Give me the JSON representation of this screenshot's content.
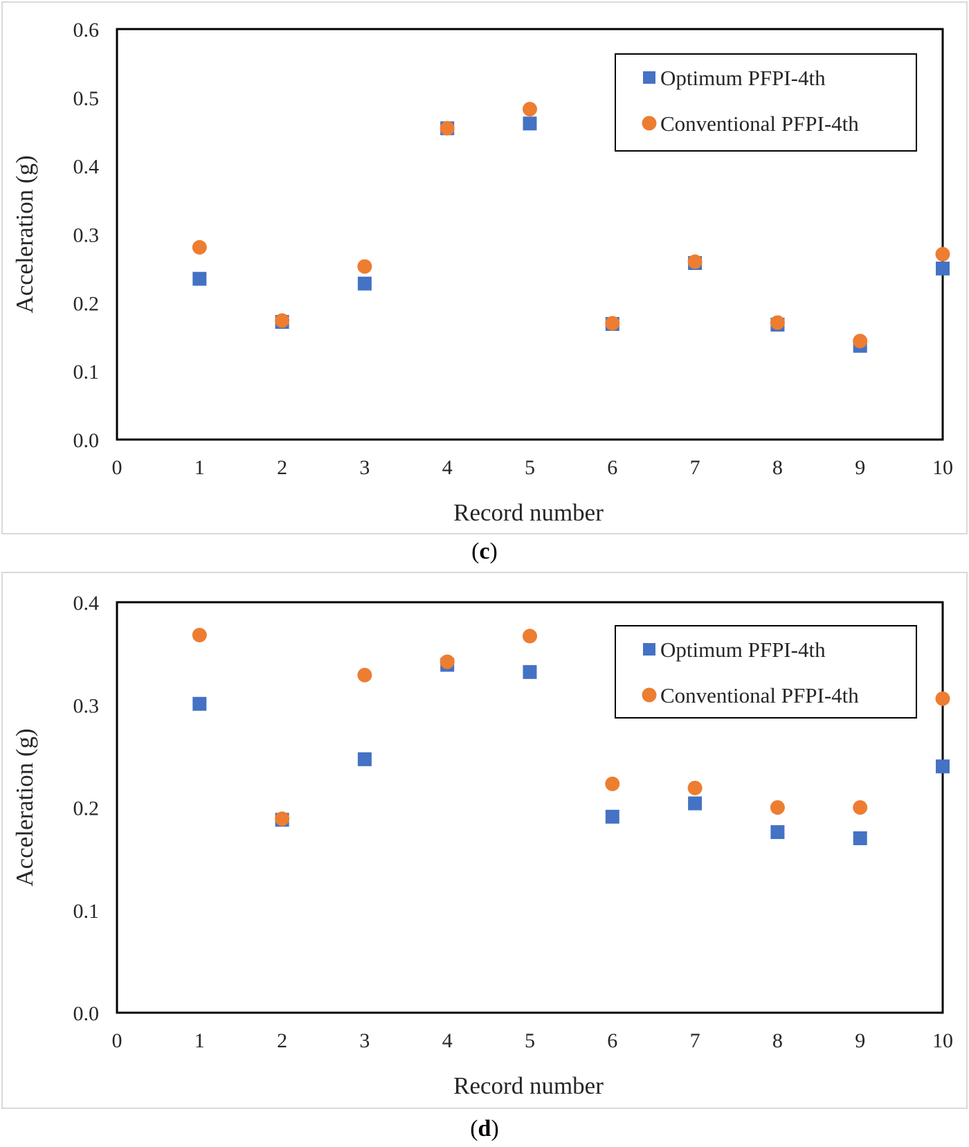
{
  "charts": {
    "c": {
      "caption_letter": "c",
      "chart_data": {
        "type": "scatter",
        "title": "",
        "xlabel": "Record number",
        "ylabel": "Acceleration (g)",
        "xlim": [
          0,
          10
        ],
        "ylim": [
          0,
          0.6
        ],
        "xticks": [
          "0",
          "1",
          "2",
          "3",
          "4",
          "5",
          "6",
          "7",
          "8",
          "9",
          "10"
        ],
        "yticks": [
          "0.0",
          "0.1",
          "0.2",
          "0.3",
          "0.4",
          "0.5",
          "0.6"
        ],
        "grid": false,
        "legend": "top-right",
        "series": [
          {
            "name": "Optimum PFPI-4th",
            "marker": "square",
            "color": "#4472C4",
            "x": [
              1,
              2,
              3,
              4,
              5,
              6,
              7,
              8,
              9,
              10
            ],
            "values": [
              0.235,
              0.172,
              0.228,
              0.455,
              0.462,
              0.169,
              0.258,
              0.168,
              0.137,
              0.25
            ]
          },
          {
            "name": "Conventional PFPI-4th",
            "marker": "circle",
            "color": "#ED7D31",
            "x": [
              1,
              2,
              3,
              4,
              5,
              6,
              7,
              8,
              9,
              10
            ],
            "values": [
              0.281,
              0.174,
              0.253,
              0.455,
              0.483,
              0.17,
              0.26,
              0.171,
              0.144,
              0.271
            ]
          }
        ]
      }
    },
    "d": {
      "caption_letter": "d",
      "chart_data": {
        "type": "scatter",
        "title": "",
        "xlabel": "Record number",
        "ylabel": "Acceleration (g)",
        "xlim": [
          0,
          10
        ],
        "ylim": [
          0,
          0.4
        ],
        "xticks": [
          "0",
          "1",
          "2",
          "3",
          "4",
          "5",
          "6",
          "7",
          "8",
          "9",
          "10"
        ],
        "yticks": [
          "0.0",
          "0.1",
          "0.2",
          "0.3",
          "0.4"
        ],
        "grid": false,
        "legend": "top-right",
        "series": [
          {
            "name": "Optimum PFPI-4th",
            "marker": "square",
            "color": "#4472C4",
            "x": [
              1,
              2,
              3,
              4,
              5,
              6,
              7,
              8,
              9,
              10
            ],
            "values": [
              0.301,
              0.188,
              0.247,
              0.339,
              0.332,
              0.191,
              0.204,
              0.176,
              0.17,
              0.24
            ]
          },
          {
            "name": "Conventional PFPI-4th",
            "marker": "circle",
            "color": "#ED7D31",
            "x": [
              1,
              2,
              3,
              4,
              5,
              6,
              7,
              8,
              9,
              10
            ],
            "values": [
              0.368,
              0.189,
              0.329,
              0.342,
              0.367,
              0.223,
              0.219,
              0.2,
              0.2,
              0.306
            ]
          }
        ]
      }
    }
  }
}
